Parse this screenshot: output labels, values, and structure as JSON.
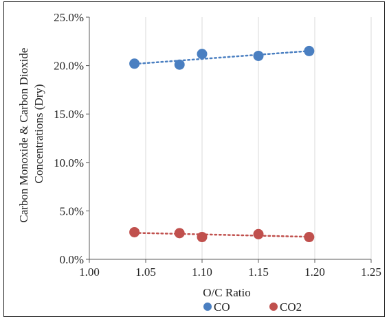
{
  "chart_data": {
    "type": "scatter",
    "xlabel": "O/C Ratio",
    "ylabel_lines": [
      "Carbon Monoxide & Carbon Dioxide",
      "Concentrations (Dry)"
    ],
    "xlim": [
      1.0,
      1.25
    ],
    "ylim": [
      0.0,
      0.25
    ],
    "x_ticks": [
      1.0,
      1.05,
      1.1,
      1.15,
      1.2,
      1.25
    ],
    "x_tick_labels": [
      "1.00",
      "1.05",
      "1.10",
      "1.15",
      "1.20",
      "1.25"
    ],
    "y_ticks": [
      0.0,
      0.05,
      0.1,
      0.15,
      0.2,
      0.25
    ],
    "y_tick_labels": [
      "0.0%",
      "5.0%",
      "10.0%",
      "15.0%",
      "20.0%",
      "25.0%"
    ],
    "grid": "vertical",
    "legend_position": "bottom",
    "series": [
      {
        "name": "CO",
        "color": "#4a7fc1",
        "trendline": true,
        "points": [
          {
            "x": 1.04,
            "y": 0.202
          },
          {
            "x": 1.08,
            "y": 0.201
          },
          {
            "x": 1.1,
            "y": 0.212
          },
          {
            "x": 1.15,
            "y": 0.21
          },
          {
            "x": 1.195,
            "y": 0.215
          }
        ]
      },
      {
        "name": "CO2",
        "color": "#c0504d",
        "trendline": true,
        "points": [
          {
            "x": 1.04,
            "y": 0.028
          },
          {
            "x": 1.08,
            "y": 0.027
          },
          {
            "x": 1.1,
            "y": 0.023
          },
          {
            "x": 1.15,
            "y": 0.026
          },
          {
            "x": 1.195,
            "y": 0.023
          }
        ]
      }
    ]
  }
}
